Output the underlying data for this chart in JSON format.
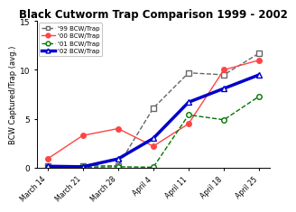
{
  "title": "Black Cutworm Trap Comparison 1999 - 2002",
  "ylabel": "BCW Captured/Trap (avg.)",
  "xlabels": [
    "March 14",
    "March 21",
    "March 28",
    "April 4",
    "April 11",
    "April 18",
    "April 25"
  ],
  "ylim": [
    0,
    15
  ],
  "yticks": [
    0,
    5,
    10,
    15
  ],
  "series": {
    "99": {
      "values": [
        0.2,
        0.2,
        0.2,
        6.1,
        9.7,
        9.5,
        11.7
      ],
      "color": "#666666",
      "linestyle": "--",
      "marker": "s",
      "markerfacecolor": "white",
      "linewidth": 1.0,
      "markersize": 4,
      "label": "99 BCW/Trap"
    },
    "00": {
      "values": [
        0.9,
        3.3,
        4.0,
        2.2,
        4.5,
        10.0,
        11.0
      ],
      "color": "#FF4444",
      "linestyle": "-",
      "marker": "o",
      "markerfacecolor": "#FF4444",
      "linewidth": 1.0,
      "markersize": 4,
      "label": "00 BCW/Trap"
    },
    "01": {
      "values": [
        0.1,
        0.05,
        0.1,
        0.05,
        5.4,
        4.9,
        7.3
      ],
      "color": "#007700",
      "linestyle": "--",
      "marker": "o",
      "markerfacecolor": "white",
      "linewidth": 1.0,
      "markersize": 4,
      "label": "01 BCW/Trap"
    },
    "02": {
      "values": [
        0.15,
        0.1,
        0.9,
        3.0,
        6.7,
        8.1,
        9.5
      ],
      "color": "#0000CC",
      "linestyle": "-",
      "marker": "^",
      "markerfacecolor": "white",
      "linewidth": 2.5,
      "markersize": 4,
      "label": "02 BCW/Trap"
    }
  },
  "legend_labels": [
    "99 BCW/Trap",
    "00 BCW/Trap",
    "01 BCW/Trap",
    "02 BCW/Trap"
  ],
  "bg_color": "#f0f0f0"
}
